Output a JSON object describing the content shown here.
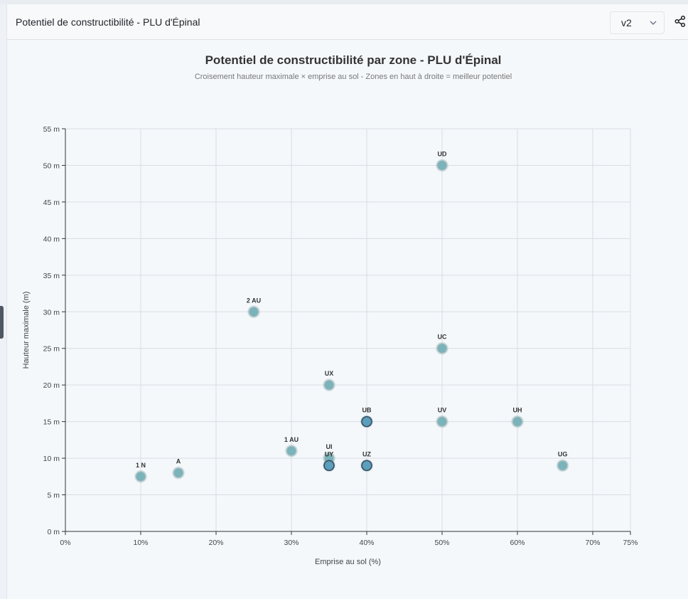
{
  "header": {
    "title": "Potentiel de constructibilité - PLU d'Épinal"
  },
  "version_select": {
    "value": "v2"
  },
  "icons": {
    "chevron": "chevron-down-icon",
    "share": "share-icon"
  },
  "chart_data": {
    "type": "scatter",
    "title": "Potentiel de constructibilité par zone - PLU d'Épinal",
    "subtitle": "Croisement hauteur maximale × emprise au sol - Zones en haut à droite = meilleur potentiel",
    "xlabel": "Emprise au sol (%)",
    "ylabel": "Hauteur maximale (m)",
    "xlim": [
      0,
      75
    ],
    "ylim": [
      0,
      55
    ],
    "x_ticks": [
      {
        "value": 0,
        "label": "0%"
      },
      {
        "value": 10,
        "label": "10%"
      },
      {
        "value": 20,
        "label": "20%"
      },
      {
        "value": 30,
        "label": "30%"
      },
      {
        "value": 40,
        "label": "40%"
      },
      {
        "value": 50,
        "label": "50%"
      },
      {
        "value": 60,
        "label": "60%"
      },
      {
        "value": 70,
        "label": "70%"
      },
      {
        "value": 75,
        "label": "75%"
      }
    ],
    "y_ticks": [
      {
        "value": 0,
        "label": "0 m"
      },
      {
        "value": 5,
        "label": "5 m"
      },
      {
        "value": 10,
        "label": "10 m"
      },
      {
        "value": 15,
        "label": "15 m"
      },
      {
        "value": 20,
        "label": "20 m"
      },
      {
        "value": 25,
        "label": "25 m"
      },
      {
        "value": 30,
        "label": "30 m"
      },
      {
        "value": 35,
        "label": "35 m"
      },
      {
        "value": 40,
        "label": "40 m"
      },
      {
        "value": 45,
        "label": "45 m"
      },
      {
        "value": 50,
        "label": "50 m"
      },
      {
        "value": 55,
        "label": "55 m"
      }
    ],
    "grid": true,
    "point_color": "#7ab3b9",
    "highlight_color": "#5a9fbd",
    "points": [
      {
        "label": "UD",
        "x": 50,
        "y": 50
      },
      {
        "label": "2 AU",
        "x": 25,
        "y": 30
      },
      {
        "label": "UC",
        "x": 50,
        "y": 25
      },
      {
        "label": "UX",
        "x": 35,
        "y": 20
      },
      {
        "label": "UB",
        "x": 40,
        "y": 15,
        "highlight": true
      },
      {
        "label": "UV",
        "x": 50,
        "y": 15
      },
      {
        "label": "UH",
        "x": 60,
        "y": 15
      },
      {
        "label": "1 AU",
        "x": 30,
        "y": 11
      },
      {
        "label": "UI",
        "x": 35,
        "y": 10
      },
      {
        "label": "UY",
        "x": 35,
        "y": 9,
        "highlight": true
      },
      {
        "label": "UZ",
        "x": 40,
        "y": 9,
        "highlight": true
      },
      {
        "label": "UG",
        "x": 66,
        "y": 9
      },
      {
        "label": "A",
        "x": 15,
        "y": 8
      },
      {
        "label": "1 N",
        "x": 10,
        "y": 7.5
      }
    ]
  }
}
